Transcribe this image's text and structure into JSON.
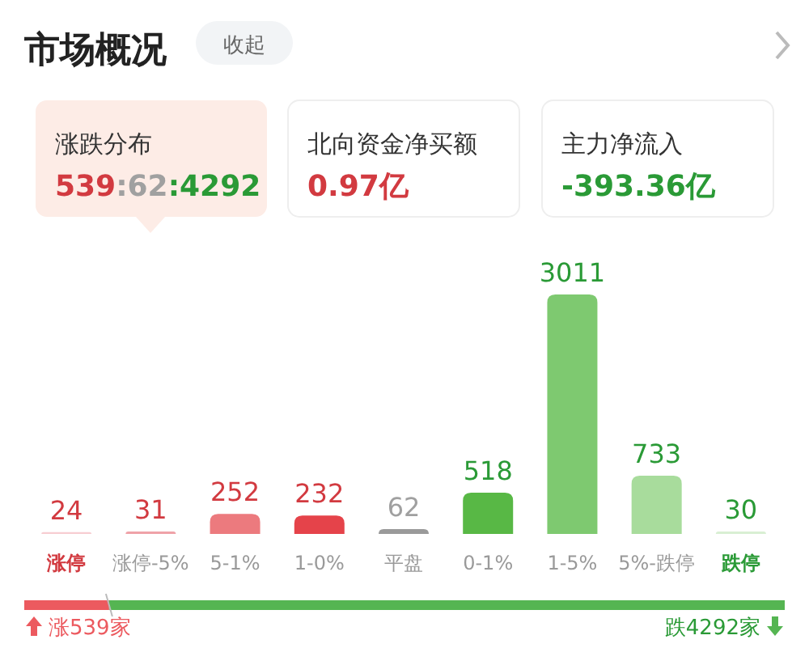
{
  "chart_data": [
    {
      "type": "other",
      "title": "市场概况",
      "annotations": [
        "收起",
        "涨跌分布",
        "539:62:4292",
        "北向资金净买额",
        "0.97亿",
        "主力净流入",
        "-393.36亿"
      ]
    },
    {
      "type": "bar",
      "categories": [
        "涨停",
        "涨停-5%",
        "5-1%",
        "1-0%",
        "平盘",
        "0-1%",
        "1-5%",
        "5%-跌停",
        "跌停"
      ],
      "values": [
        24,
        31,
        252,
        232,
        62,
        518,
        3011,
        733,
        30
      ],
      "colors": [
        "#f7cdd1",
        "#efa2a8",
        "#ec7a7e",
        "#e5434a",
        "#9a9a9a",
        "#58b845",
        "#7ec970",
        "#a8dc9c",
        "#d9efd3"
      ],
      "data_labels": true
    },
    {
      "type": "bar",
      "orientation": "horizontal",
      "stacked": true,
      "categories": [
        null
      ],
      "series": [
        {
          "color": "#ec5a5f",
          "values": [
            539
          ],
          "value_labels": [
            "涨539家"
          ]
        },
        {
          "color": "#55b552",
          "values": [
            4292
          ],
          "value_labels": [
            "跌4292家"
          ]
        }
      ]
    }
  ]
}
